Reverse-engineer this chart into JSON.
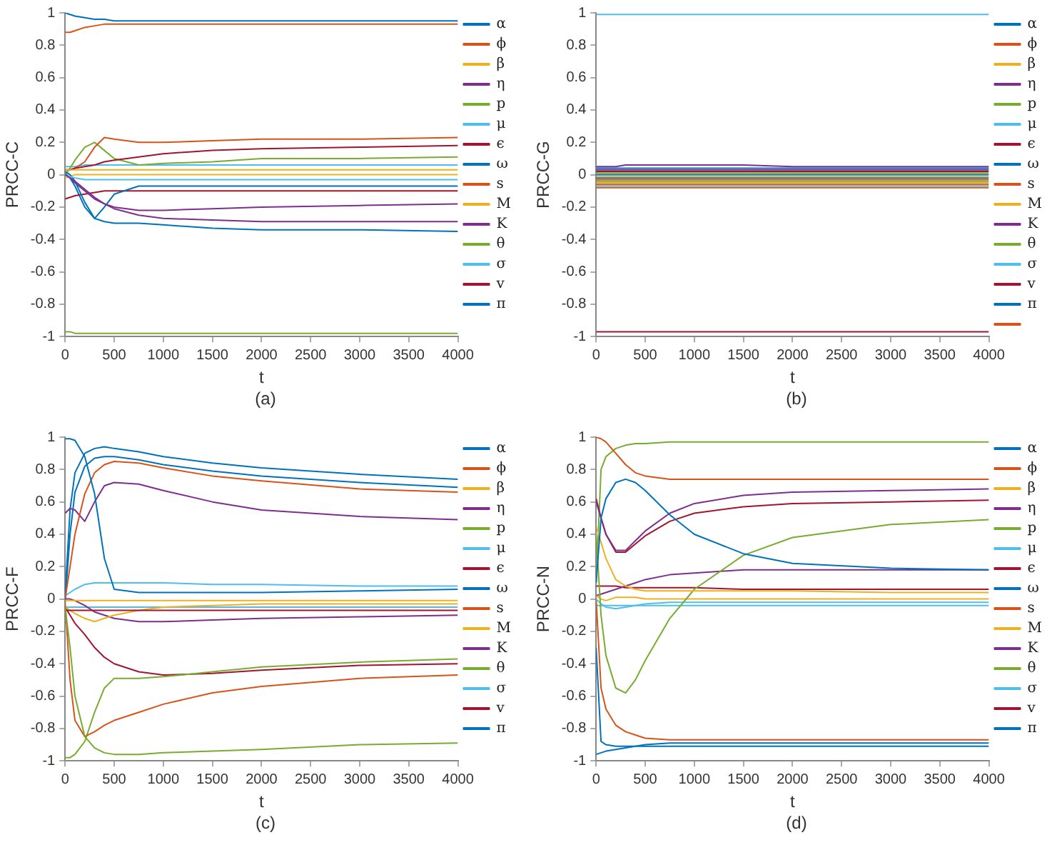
{
  "chart_data": [
    {
      "type": "line",
      "xlabel": "t",
      "ylabel": "PRCC-C",
      "annotations": [
        "(a)"
      ],
      "xlim": [
        0,
        4000
      ],
      "xticks": [
        0,
        500,
        1000,
        1500,
        2000,
        2500,
        3000,
        3500,
        4000
      ],
      "ylim": [
        -1,
        1
      ],
      "yticks": [
        -1,
        -0.8,
        -0.6,
        -0.4,
        -0.2,
        0,
        0.2,
        0.4,
        0.6,
        0.8,
        1
      ],
      "grid": false,
      "legend": "right",
      "x": [
        0,
        50,
        100,
        200,
        300,
        400,
        500,
        750,
        1000,
        1500,
        2000,
        3000,
        4000
      ],
      "series": [
        {
          "name": "α",
          "color": "#0072bd",
          "values": [
            1,
            0.99,
            0.98,
            0.97,
            0.96,
            0.96,
            0.95,
            0.95,
            0.95,
            0.95,
            0.95,
            0.95,
            0.95
          ]
        },
        {
          "name": "ϕ",
          "color": "#d95319",
          "values": [
            0.88,
            0.88,
            0.89,
            0.91,
            0.92,
            0.93,
            0.93,
            0.93,
            0.93,
            0.93,
            0.93,
            0.93,
            0.93
          ]
        },
        {
          "name": "β",
          "color": "#edb120",
          "values": [
            0.03,
            0.03,
            0.03,
            0.03,
            0.03,
            0.03,
            0.03,
            0.03,
            0.03,
            0.03,
            0.03,
            0.03,
            0.03
          ]
        },
        {
          "name": "η",
          "color": "#7e2f8e",
          "values": [
            0,
            -0.02,
            -0.04,
            -0.09,
            -0.14,
            -0.18,
            -0.21,
            -0.25,
            -0.27,
            -0.28,
            -0.29,
            -0.29,
            -0.29
          ]
        },
        {
          "name": "p",
          "color": "#77ac30",
          "values": [
            -0.97,
            -0.97,
            -0.98,
            -0.98,
            -0.98,
            -0.98,
            -0.98,
            -0.98,
            -0.98,
            -0.98,
            -0.98,
            -0.98,
            -0.98
          ]
        },
        {
          "name": "μ",
          "color": "#4dbeee",
          "values": [
            0,
            -0.01,
            -0.02,
            -0.03,
            -0.03,
            -0.03,
            -0.03,
            -0.03,
            -0.03,
            -0.03,
            -0.03,
            -0.03,
            -0.03
          ]
        },
        {
          "name": "ϵ",
          "color": "#a2142f",
          "values": [
            0.03,
            0.03,
            0.04,
            0.05,
            0.06,
            0.08,
            0.09,
            0.11,
            0.13,
            0.15,
            0.16,
            0.17,
            0.18
          ]
        },
        {
          "name": "ω",
          "color": "#0072bd",
          "values": [
            0.02,
            0,
            -0.04,
            -0.17,
            -0.27,
            -0.2,
            -0.12,
            -0.07,
            -0.07,
            -0.07,
            -0.07,
            -0.07,
            -0.07
          ]
        },
        {
          "name": "s",
          "color": "#d95319",
          "values": [
            0.03,
            0.03,
            0.04,
            0.08,
            0.17,
            0.23,
            0.22,
            0.2,
            0.2,
            0.21,
            0.22,
            0.22,
            0.23
          ]
        },
        {
          "name": "M",
          "color": "#edb120",
          "values": [
            -0.02,
            -0.01,
            0,
            0,
            0,
            0,
            0,
            0,
            0,
            0,
            0,
            0,
            0
          ]
        },
        {
          "name": "K",
          "color": "#7e2f8e",
          "values": [
            0,
            -0.02,
            -0.05,
            -0.1,
            -0.15,
            -0.18,
            -0.2,
            -0.22,
            -0.22,
            -0.21,
            -0.2,
            -0.19,
            -0.18
          ]
        },
        {
          "name": "θ",
          "color": "#77ac30",
          "values": [
            0,
            0.04,
            0.09,
            0.17,
            0.2,
            0.15,
            0.1,
            0.06,
            0.07,
            0.08,
            0.1,
            0.1,
            0.11
          ]
        },
        {
          "name": "σ",
          "color": "#4dbeee",
          "values": [
            0.05,
            0.05,
            0.05,
            0.06,
            0.06,
            0.06,
            0.06,
            0.06,
            0.06,
            0.06,
            0.06,
            0.06,
            0.06
          ]
        },
        {
          "name": "v",
          "color": "#a2142f",
          "values": [
            -0.15,
            -0.14,
            -0.13,
            -0.12,
            -0.11,
            -0.1,
            -0.1,
            -0.1,
            -0.1,
            -0.1,
            -0.1,
            -0.1,
            -0.1
          ]
        },
        {
          "name": "π",
          "color": "#0072bd",
          "values": [
            0.01,
            -0.02,
            -0.07,
            -0.2,
            -0.27,
            -0.29,
            -0.3,
            -0.3,
            -0.31,
            -0.33,
            -0.34,
            -0.34,
            -0.35
          ]
        }
      ]
    },
    {
      "type": "line",
      "xlabel": "t",
      "ylabel": "PRCC-G",
      "annotations": [
        "(b)"
      ],
      "xlim": [
        0,
        4000
      ],
      "xticks": [
        0,
        500,
        1000,
        1500,
        2000,
        2500,
        3000,
        3500,
        4000
      ],
      "ylim": [
        -1,
        1
      ],
      "yticks": [
        -1,
        -0.8,
        -0.6,
        -0.4,
        -0.2,
        0,
        0.2,
        0.4,
        0.6,
        0.8,
        1
      ],
      "grid": false,
      "legend": "right",
      "x": [
        0,
        50,
        100,
        200,
        300,
        400,
        500,
        750,
        1000,
        1500,
        2000,
        3000,
        4000
      ],
      "series": [
        {
          "name": "α",
          "color": "#0072bd",
          "values": [
            0.04,
            0.04,
            0.04,
            0.04,
            0.04,
            0.04,
            0.04,
            0.04,
            0.04,
            0.04,
            0.04,
            0.04,
            0.04
          ]
        },
        {
          "name": "ϕ",
          "color": "#d95319",
          "values": [
            -0.03,
            -0.03,
            -0.03,
            -0.03,
            -0.03,
            -0.03,
            -0.03,
            -0.03,
            -0.03,
            -0.03,
            -0.03,
            -0.03,
            -0.03
          ]
        },
        {
          "name": "β",
          "color": "#edb120",
          "values": [
            -0.05,
            -0.05,
            -0.05,
            -0.05,
            -0.05,
            -0.05,
            -0.05,
            -0.05,
            -0.05,
            -0.05,
            -0.05,
            -0.05,
            -0.05
          ]
        },
        {
          "name": "η",
          "color": "#7e2f8e",
          "values": [
            0.05,
            0.05,
            0.05,
            0.05,
            0.06,
            0.06,
            0.06,
            0.06,
            0.06,
            0.06,
            0.05,
            0.05,
            0.05
          ]
        },
        {
          "name": "p",
          "color": "#77ac30",
          "values": [
            0.01,
            0.01,
            0.01,
            0.01,
            0.01,
            0.01,
            0.01,
            0.01,
            0.01,
            0.01,
            0.01,
            0.01,
            0.01
          ]
        },
        {
          "name": "μ",
          "color": "#4dbeee",
          "values": [
            0.99,
            0.99,
            0.99,
            0.99,
            0.99,
            0.99,
            0.99,
            0.99,
            0.99,
            0.99,
            0.99,
            0.99,
            0.99
          ]
        },
        {
          "name": "ϵ",
          "color": "#a2142f",
          "values": [
            -0.97,
            -0.97,
            -0.97,
            -0.97,
            -0.97,
            -0.97,
            -0.97,
            -0.97,
            -0.97,
            -0.97,
            -0.97,
            -0.97,
            -0.97
          ]
        },
        {
          "name": "ω",
          "color": "#0072bd",
          "values": [
            0,
            0,
            0,
            0,
            0,
            0,
            0,
            0,
            0,
            0,
            0,
            0,
            0
          ]
        },
        {
          "name": "s",
          "color": "#d95319",
          "values": [
            -0.06,
            -0.06,
            -0.06,
            -0.06,
            -0.06,
            -0.06,
            -0.06,
            -0.06,
            -0.06,
            -0.06,
            -0.06,
            -0.06,
            -0.06
          ]
        },
        {
          "name": "M",
          "color": "#edb120",
          "values": [
            -0.01,
            -0.01,
            -0.01,
            -0.01,
            -0.01,
            -0.01,
            -0.01,
            -0.01,
            -0.01,
            -0.01,
            -0.01,
            -0.01,
            -0.01
          ]
        },
        {
          "name": "K",
          "color": "#7e2f8e",
          "values": [
            0.03,
            0.03,
            0.03,
            0.03,
            0.03,
            0.03,
            0.03,
            0.03,
            0.03,
            0.03,
            0.03,
            0.03,
            0.03
          ]
        },
        {
          "name": "θ",
          "color": "#77ac30",
          "values": [
            -0.04,
            -0.04,
            -0.04,
            -0.04,
            -0.04,
            -0.04,
            -0.04,
            -0.04,
            -0.04,
            -0.04,
            -0.04,
            -0.04,
            -0.04
          ]
        },
        {
          "name": "σ",
          "color": "#4dbeee",
          "values": [
            -0.07,
            -0.07,
            -0.07,
            -0.07,
            -0.07,
            -0.07,
            -0.07,
            -0.07,
            -0.07,
            -0.07,
            -0.07,
            -0.07,
            -0.07
          ]
        },
        {
          "name": "v",
          "color": "#a2142f",
          "values": [
            0.02,
            0.02,
            0.02,
            0.02,
            0.02,
            0.02,
            0.02,
            0.02,
            0.02,
            0.02,
            0.02,
            0.02,
            0.02
          ]
        },
        {
          "name": "π",
          "color": "#0072bd",
          "values": [
            -0.02,
            -0.02,
            -0.02,
            -0.02,
            -0.02,
            -0.02,
            -0.02,
            -0.02,
            -0.02,
            -0.02,
            -0.02,
            -0.02,
            -0.02
          ]
        },
        {
          "color": "#d95319",
          "values": [
            -0.08,
            -0.08,
            -0.08,
            -0.08,
            -0.08,
            -0.08,
            -0.08,
            -0.08,
            -0.08,
            -0.08,
            -0.08,
            -0.08,
            -0.08
          ]
        }
      ]
    },
    {
      "type": "line",
      "xlabel": "t",
      "ylabel": "PRCC-F",
      "annotations": [
        "(c)"
      ],
      "xlim": [
        0,
        4000
      ],
      "xticks": [
        0,
        500,
        1000,
        1500,
        2000,
        2500,
        3000,
        3500,
        4000
      ],
      "ylim": [
        -1,
        1
      ],
      "yticks": [
        -1,
        -0.8,
        -0.6,
        -0.4,
        -0.2,
        0,
        0.2,
        0.4,
        0.6,
        0.8,
        1
      ],
      "grid": false,
      "legend": "right",
      "x": [
        0,
        50,
        100,
        200,
        300,
        400,
        500,
        750,
        1000,
        1500,
        2000,
        3000,
        4000
      ],
      "series": [
        {
          "name": "α",
          "color": "#0072bd",
          "values": [
            0.99,
            0.99,
            0.98,
            0.88,
            0.65,
            0.25,
            0.06,
            0.04,
            0.04,
            0.04,
            0.04,
            0.05,
            0.06
          ]
        },
        {
          "name": "ϕ",
          "color": "#d95319",
          "values": [
            0,
            0.2,
            0.4,
            0.65,
            0.78,
            0.83,
            0.85,
            0.84,
            0.81,
            0.76,
            0.73,
            0.68,
            0.66
          ]
        },
        {
          "name": "β",
          "color": "#edb120",
          "values": [
            -0.01,
            -0.01,
            -0.01,
            -0.01,
            -0.01,
            -0.01,
            -0.01,
            -0.01,
            -0.01,
            -0.01,
            -0.01,
            -0.01,
            -0.01
          ]
        },
        {
          "name": "η",
          "color": "#7e2f8e",
          "values": [
            0.53,
            0.56,
            0.55,
            0.48,
            0.6,
            0.7,
            0.72,
            0.71,
            0.67,
            0.6,
            0.55,
            0.51,
            0.49
          ]
        },
        {
          "name": "p",
          "color": "#77ac30",
          "values": [
            -0.05,
            -0.3,
            -0.6,
            -0.85,
            -0.92,
            -0.95,
            -0.96,
            -0.96,
            -0.95,
            -0.94,
            -0.93,
            -0.9,
            -0.89
          ]
        },
        {
          "name": "μ",
          "color": "#4dbeee",
          "values": [
            0.02,
            0.04,
            0.06,
            0.09,
            0.1,
            0.1,
            0.1,
            0.1,
            0.1,
            0.09,
            0.09,
            0.08,
            0.08
          ]
        },
        {
          "name": "ϵ",
          "color": "#a2142f",
          "values": [
            -0.07,
            -0.07,
            -0.07,
            -0.07,
            -0.07,
            -0.07,
            -0.07,
            -0.07,
            -0.07,
            -0.07,
            -0.07,
            -0.07,
            -0.07
          ]
        },
        {
          "name": "ω",
          "color": "#0072bd",
          "values": [
            0.03,
            0.55,
            0.78,
            0.9,
            0.93,
            0.94,
            0.93,
            0.91,
            0.88,
            0.84,
            0.81,
            0.77,
            0.74
          ]
        },
        {
          "name": "s",
          "color": "#d95319",
          "values": [
            -0.02,
            -0.5,
            -0.75,
            -0.85,
            -0.82,
            -0.78,
            -0.75,
            -0.7,
            -0.65,
            -0.58,
            -0.54,
            -0.49,
            -0.47
          ]
        },
        {
          "name": "M",
          "color": "#edb120",
          "values": [
            -0.05,
            -0.07,
            -0.09,
            -0.12,
            -0.14,
            -0.12,
            -0.1,
            -0.07,
            -0.05,
            -0.04,
            -0.03,
            -0.03,
            -0.03
          ]
        },
        {
          "name": "K",
          "color": "#7e2f8e",
          "values": [
            0,
            0,
            -0.01,
            -0.04,
            -0.08,
            -0.1,
            -0.12,
            -0.14,
            -0.14,
            -0.13,
            -0.12,
            -0.11,
            -0.1
          ]
        },
        {
          "name": "θ",
          "color": "#77ac30",
          "values": [
            -0.98,
            -0.98,
            -0.96,
            -0.88,
            -0.7,
            -0.55,
            -0.49,
            -0.49,
            -0.48,
            -0.45,
            -0.42,
            -0.39,
            -0.37
          ]
        },
        {
          "name": "σ",
          "color": "#4dbeee",
          "values": [
            -0.05,
            -0.05,
            -0.05,
            -0.05,
            -0.05,
            -0.05,
            -0.05,
            -0.05,
            -0.05,
            -0.05,
            -0.05,
            -0.05,
            -0.05
          ]
        },
        {
          "name": "v",
          "color": "#a2142f",
          "values": [
            -0.05,
            -0.1,
            -0.15,
            -0.22,
            -0.3,
            -0.36,
            -0.4,
            -0.45,
            -0.47,
            -0.46,
            -0.44,
            -0.41,
            -0.4
          ]
        },
        {
          "name": "π",
          "color": "#0072bd",
          "values": [
            -0.02,
            0.4,
            0.66,
            0.82,
            0.87,
            0.88,
            0.88,
            0.86,
            0.83,
            0.79,
            0.76,
            0.72,
            0.69
          ]
        }
      ]
    },
    {
      "type": "line",
      "xlabel": "t",
      "ylabel": "PRCC-N",
      "annotations": [
        "(d)"
      ],
      "xlim": [
        0,
        4000
      ],
      "xticks": [
        0,
        500,
        1000,
        1500,
        2000,
        2500,
        3000,
        3500,
        4000
      ],
      "ylim": [
        -1,
        1
      ],
      "yticks": [
        -1,
        -0.8,
        -0.6,
        -0.4,
        -0.2,
        0,
        0.2,
        0.4,
        0.6,
        0.8,
        1
      ],
      "grid": false,
      "legend": "right",
      "x": [
        0,
        50,
        100,
        200,
        300,
        400,
        500,
        750,
        1000,
        1500,
        2000,
        3000,
        4000
      ],
      "series": [
        {
          "name": "α",
          "color": "#0072bd",
          "values": [
            0.1,
            0.5,
            0.62,
            0.72,
            0.74,
            0.72,
            0.67,
            0.52,
            0.4,
            0.28,
            0.22,
            0.19,
            0.18
          ]
        },
        {
          "name": "ϕ",
          "color": "#d95319",
          "values": [
            1,
            0.99,
            0.97,
            0.9,
            0.83,
            0.78,
            0.76,
            0.74,
            0.74,
            0.74,
            0.74,
            0.74,
            0.74
          ]
        },
        {
          "name": "β",
          "color": "#edb120",
          "values": [
            0.45,
            0.35,
            0.25,
            0.12,
            0.08,
            0.06,
            0.05,
            0.05,
            0.05,
            0.05,
            0.05,
            0.04,
            0.04
          ]
        },
        {
          "name": "η",
          "color": "#7e2f8e",
          "values": [
            0.6,
            0.5,
            0.4,
            0.3,
            0.3,
            0.36,
            0.42,
            0.53,
            0.59,
            0.64,
            0.66,
            0.67,
            0.68
          ]
        },
        {
          "name": "p",
          "color": "#77ac30",
          "values": [
            0.4,
            -0.1,
            -0.35,
            -0.55,
            -0.58,
            -0.5,
            -0.38,
            -0.12,
            0.06,
            0.27,
            0.38,
            0.46,
            0.49
          ]
        },
        {
          "name": "μ",
          "color": "#4dbeee",
          "values": [
            0,
            -0.03,
            -0.05,
            -0.06,
            -0.05,
            -0.04,
            -0.03,
            -0.02,
            -0.02,
            -0.02,
            -0.02,
            -0.02,
            -0.02
          ]
        },
        {
          "name": "ϵ",
          "color": "#a2142f",
          "values": [
            0.62,
            0.5,
            0.4,
            0.29,
            0.29,
            0.34,
            0.39,
            0.48,
            0.53,
            0.57,
            0.59,
            0.6,
            0.61
          ]
        },
        {
          "name": "ω",
          "color": "#0072bd",
          "values": [
            -0.3,
            -0.88,
            -0.9,
            -0.91,
            -0.91,
            -0.91,
            -0.91,
            -0.91,
            -0.91,
            -0.91,
            -0.91,
            -0.91,
            -0.91
          ]
        },
        {
          "name": "s",
          "color": "#d95319",
          "values": [
            0,
            -0.55,
            -0.68,
            -0.78,
            -0.82,
            -0.84,
            -0.86,
            -0.87,
            -0.87,
            -0.87,
            -0.87,
            -0.87,
            -0.87
          ]
        },
        {
          "name": "M",
          "color": "#edb120",
          "values": [
            0.02,
            0,
            -0.01,
            0.01,
            0.01,
            0.01,
            0,
            0,
            0,
            0,
            0,
            0,
            0
          ]
        },
        {
          "name": "K",
          "color": "#7e2f8e",
          "values": [
            0.02,
            0.03,
            0.04,
            0.06,
            0.08,
            0.1,
            0.12,
            0.15,
            0.16,
            0.18,
            0.18,
            0.18,
            0.18
          ]
        },
        {
          "name": "θ",
          "color": "#77ac30",
          "values": [
            0.1,
            0.8,
            0.88,
            0.93,
            0.95,
            0.96,
            0.96,
            0.97,
            0.97,
            0.97,
            0.97,
            0.97,
            0.97
          ]
        },
        {
          "name": "σ",
          "color": "#4dbeee",
          "values": [
            -0.04,
            -0.04,
            -0.04,
            -0.04,
            -0.04,
            -0.04,
            -0.04,
            -0.04,
            -0.04,
            -0.04,
            -0.04,
            -0.04,
            -0.04
          ]
        },
        {
          "name": "v",
          "color": "#a2142f",
          "values": [
            0.08,
            0.08,
            0.08,
            0.08,
            0.07,
            0.07,
            0.07,
            0.07,
            0.07,
            0.06,
            0.06,
            0.06,
            0.06
          ]
        },
        {
          "name": "π",
          "color": "#0072bd",
          "values": [
            -0.96,
            -0.95,
            -0.94,
            -0.93,
            -0.92,
            -0.91,
            -0.9,
            -0.89,
            -0.89,
            -0.89,
            -0.89,
            -0.89,
            -0.89
          ]
        }
      ]
    }
  ]
}
